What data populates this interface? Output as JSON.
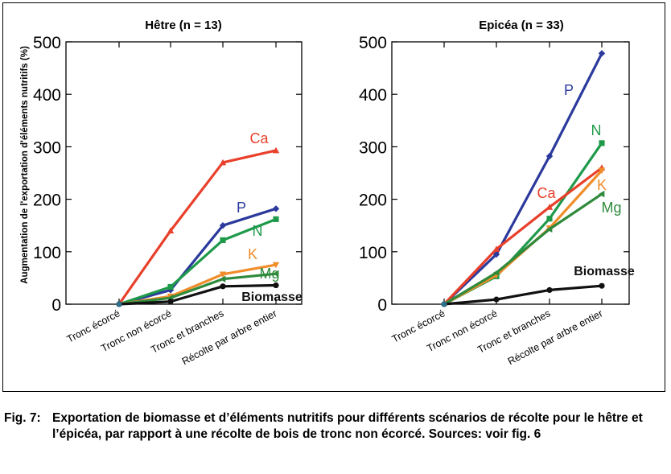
{
  "chart_data": [
    {
      "type": "line",
      "title": "Hêtre (n = 13)",
      "ylabel": "Augmentation de l'exportation d'éléments nutritifs (%)",
      "ylim": [
        0,
        500
      ],
      "yticks": [
        0,
        100,
        200,
        300,
        400,
        500
      ],
      "categories": [
        "Tronc écorcé",
        "Tronc non écorcé",
        "Tronc et branches",
        "Récolte par arbre entier"
      ],
      "series": [
        {
          "name": "Ca",
          "color": "#e8402a",
          "marker": "triangle",
          "values": [
            0,
            140,
            270,
            293
          ]
        },
        {
          "name": "P",
          "color": "#2b3a9c",
          "marker": "diamond",
          "values": [
            0,
            27,
            150,
            182
          ]
        },
        {
          "name": "N",
          "color": "#1e9a4a",
          "marker": "square",
          "values": [
            0,
            33,
            122,
            162
          ]
        },
        {
          "name": "K",
          "color": "#f08c2a",
          "marker": "triangle-down",
          "values": [
            0,
            15,
            57,
            75
          ]
        },
        {
          "name": "Mg",
          "color": "#2f8a3c",
          "marker": "triangle-left",
          "values": [
            0,
            12,
            48,
            58
          ]
        },
        {
          "name": "Biomasse",
          "color": "#111111",
          "marker": "circle",
          "values": [
            0,
            5,
            34,
            36
          ]
        }
      ]
    },
    {
      "type": "line",
      "title": "Epicéa (n = 33)",
      "ylabel": "",
      "ylim": [
        0,
        500
      ],
      "yticks": [
        0,
        100,
        200,
        300,
        400,
        500
      ],
      "categories": [
        "Tronc écorcé",
        "Tronc non écorcé",
        "Tronc et branches",
        "Récolte par arbre entier"
      ],
      "series": [
        {
          "name": "P",
          "color": "#2b3a9c",
          "marker": "diamond",
          "values": [
            0,
            95,
            282,
            478
          ]
        },
        {
          "name": "N",
          "color": "#1e9a4a",
          "marker": "square",
          "values": [
            0,
            53,
            163,
            307
          ]
        },
        {
          "name": "Ca",
          "color": "#e8402a",
          "marker": "triangle",
          "values": [
            0,
            105,
            185,
            260
          ]
        },
        {
          "name": "K",
          "color": "#f08c2a",
          "marker": "triangle-down",
          "values": [
            0,
            55,
            145,
            255
          ]
        },
        {
          "name": "Mg",
          "color": "#2f8a3c",
          "marker": "triangle-left",
          "values": [
            0,
            60,
            143,
            210
          ]
        },
        {
          "name": "Biomasse",
          "color": "#111111",
          "marker": "circle",
          "values": [
            0,
            9,
            27,
            35
          ]
        }
      ]
    }
  ],
  "caption": {
    "number": "Fig. 7:",
    "text": "Exportation de biomasse et d’éléments nutritifs pour différents scénarios de récolte pour le hêtre et l’épicéa, par rapport à une récolte de bois de tronc non écorcé. Sources: voir fig. 6"
  }
}
